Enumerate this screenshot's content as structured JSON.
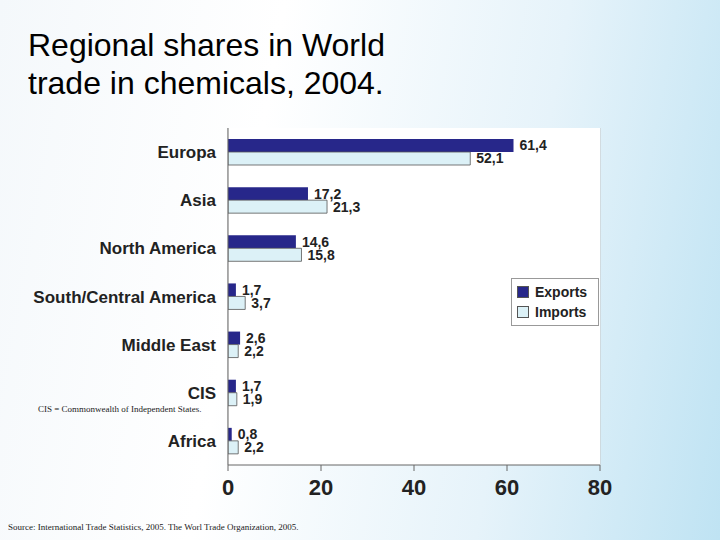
{
  "chart_data": {
    "type": "bar",
    "orientation": "horizontal",
    "title": "Regional shares in World trade in chemicals, 2004.",
    "categories": [
      "Europa",
      "Asia",
      "North America",
      "South/Central America",
      "Middle East",
      "CIS",
      "Africa"
    ],
    "series": [
      {
        "name": "Exports",
        "color": "#27278a",
        "values": [
          61.4,
          17.2,
          14.6,
          1.7,
          2.6,
          1.7,
          0.8
        ],
        "value_labels": [
          "61,4",
          "17,2",
          "14,6",
          "1,7",
          "2,6",
          "1,7",
          "0,8"
        ]
      },
      {
        "name": "Imports",
        "color": "#dcf1f7",
        "values": [
          52.1,
          21.3,
          15.8,
          3.7,
          2.2,
          1.9,
          2.2
        ],
        "value_labels": [
          "52,1",
          "21,3",
          "15,8",
          "3,7",
          "2,2",
          "1,9",
          "2,2"
        ]
      }
    ],
    "xlim": [
      0,
      80
    ],
    "xticks": [
      0,
      20,
      40,
      60,
      80
    ],
    "grid": true,
    "legend": "right",
    "data_labels": true,
    "annotations": [
      "CIS = Commonwealth of Independent States.",
      "Source: International Trade Statistics, 2005. The Worl Trade Organization, 2005."
    ]
  }
}
